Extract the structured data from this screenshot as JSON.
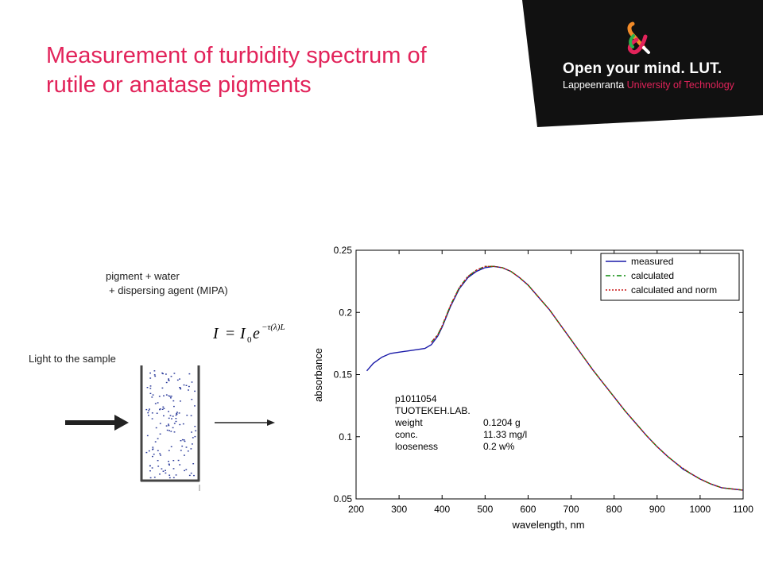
{
  "slide": {
    "title_line1": "Measurement of turbidity spectrum of",
    "title_line2": "rutile or anatase pigments"
  },
  "brand": {
    "tagline": "Open your mind. LUT.",
    "university_part1": "Lappeenranta ",
    "university_part2": "University of Technology",
    "logo_icon": "ampersand-logo-icon",
    "panel_color": "#111111",
    "accent_color": "#e2235a"
  },
  "illustration": {
    "mixture_line1": "pigment  + water",
    "mixture_line2": "+ dispersing agent (MIPA)",
    "light_label": "Light to the sample",
    "formula": {
      "I": "I",
      "eq": "=",
      "I0": "I",
      "sub0": "0",
      "e": "e",
      "exponent": "−τ(λ)L"
    },
    "incident_arrow_icon": "thick-arrow-right-icon",
    "transmitted_arrow_icon": "thin-arrow-right-icon"
  },
  "chart_data": {
    "type": "line",
    "xlabel": "wavelength, nm",
    "ylabel": "absorbance",
    "xlim": [
      200,
      1100
    ],
    "ylim": [
      0.05,
      0.25
    ],
    "xticks": [
      "200",
      "300",
      "400",
      "500",
      "600",
      "700",
      "800",
      "900",
      "1000",
      "1100"
    ],
    "yticks": [
      "0.05",
      "0.1",
      "0.15",
      "0.2",
      "0.25"
    ],
    "grid": false,
    "legend_position": "top-right",
    "series": [
      {
        "name": "measured",
        "color": "#1a1aa8",
        "style": "solid",
        "x": [
          225,
          240,
          260,
          280,
          300,
          320,
          340,
          360,
          375,
          390,
          400,
          420,
          440,
          460,
          480,
          500,
          520,
          540,
          560,
          580,
          600,
          625,
          650,
          675,
          700,
          725,
          750,
          775,
          800,
          825,
          850,
          875,
          900,
          925,
          950,
          960,
          975,
          1000,
          1025,
          1050,
          1075,
          1100
        ],
        "y": [
          0.153,
          0.159,
          0.164,
          0.167,
          0.168,
          0.169,
          0.17,
          0.171,
          0.174,
          0.181,
          0.188,
          0.205,
          0.219,
          0.228,
          0.233,
          0.236,
          0.237,
          0.236,
          0.233,
          0.228,
          0.222,
          0.212,
          0.202,
          0.19,
          0.178,
          0.166,
          0.154,
          0.143,
          0.132,
          0.121,
          0.111,
          0.101,
          0.092,
          0.084,
          0.077,
          0.074,
          0.071,
          0.066,
          0.062,
          0.059,
          0.058,
          0.057
        ]
      },
      {
        "name": "calculated",
        "color": "#0a8a0a",
        "style": "dashdot",
        "x": [
          375,
          390,
          400,
          420,
          440,
          460,
          480,
          500,
          520,
          540,
          560,
          580,
          600,
          625,
          650,
          675,
          700,
          725,
          750,
          775,
          800,
          825,
          850,
          875,
          900,
          925,
          950,
          975,
          1000,
          1025,
          1050,
          1075,
          1100
        ],
        "y": [
          0.176,
          0.182,
          0.189,
          0.206,
          0.22,
          0.229,
          0.234,
          0.237,
          0.237,
          0.236,
          0.233,
          0.228,
          0.222,
          0.212,
          0.202,
          0.19,
          0.178,
          0.166,
          0.154,
          0.143,
          0.132,
          0.121,
          0.111,
          0.101,
          0.092,
          0.084,
          0.077,
          0.071,
          0.066,
          0.062,
          0.059,
          0.058,
          0.057
        ]
      },
      {
        "name": "calculated and norm",
        "color": "#c81414",
        "style": "dotted",
        "x": [
          375,
          390,
          400,
          420,
          440,
          460,
          480,
          500,
          520,
          540,
          560,
          580,
          600,
          625,
          650,
          675,
          700,
          725,
          750,
          775,
          800,
          825,
          850,
          875,
          900,
          925,
          950,
          975,
          1000,
          1025,
          1050,
          1075,
          1100
        ],
        "y": [
          0.176,
          0.182,
          0.189,
          0.206,
          0.22,
          0.229,
          0.234,
          0.237,
          0.237,
          0.236,
          0.233,
          0.228,
          0.222,
          0.212,
          0.202,
          0.19,
          0.178,
          0.166,
          0.154,
          0.143,
          0.132,
          0.121,
          0.111,
          0.101,
          0.092,
          0.084,
          0.077,
          0.071,
          0.066,
          0.062,
          0.059,
          0.058,
          0.057
        ]
      }
    ],
    "annotation": {
      "lines": [
        {
          "label": "p1011054",
          "value": ""
        },
        {
          "label": "TUOTEKEH.LAB.",
          "value": ""
        },
        {
          "label": "weight",
          "value": "0.1204 g"
        },
        {
          "label": "conc.",
          "value": " 11.33 mg/l"
        },
        {
          "label": "looseness",
          "value": "0.2 w%"
        }
      ]
    }
  }
}
